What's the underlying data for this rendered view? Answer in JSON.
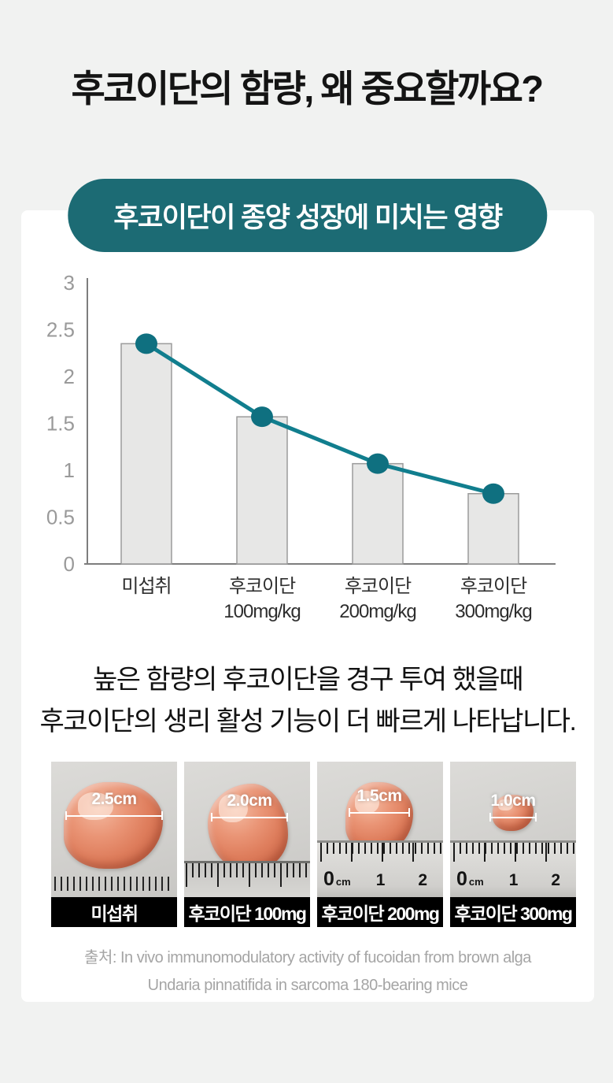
{
  "page": {
    "background_color": "#f1f2f1",
    "card_color": "#ffffff"
  },
  "header": {
    "title": "후코이단의 함량, 왜 중요할까요?",
    "badge": "후코이단이 종양 성장에 미치는 영향",
    "badge_color": "#1c6b74"
  },
  "chart_data": {
    "type": "bar",
    "title": "후코이단이 종양 성장에 미치는 영향",
    "categories": [
      [
        "미섭취"
      ],
      [
        "후코이단",
        "100mg/kg"
      ],
      [
        "후코이단",
        "200mg/kg"
      ],
      [
        "후코이단",
        "300mg/kg"
      ]
    ],
    "values": [
      2.35,
      1.57,
      1.07,
      0.75
    ],
    "overlay_line": true,
    "xlabel": "",
    "ylabel": "",
    "ylim": [
      0,
      3
    ],
    "yticks": [
      0,
      0.5,
      1,
      1.5,
      2,
      2.5,
      3
    ],
    "grid": false,
    "legend": null,
    "bar_fill": "#e7e7e6",
    "bar_border": "#9b9b9b",
    "line_color": "#117e8e",
    "marker_color": "#0f7080"
  },
  "description": {
    "line1": "높은 함량의 후코이단을 경구 투여 했을때",
    "line2": "후코이단의 생리 활성 기능이 더 빠르게 나타납니다."
  },
  "specimens": {
    "items": [
      {
        "size": "2.5cm",
        "label": "미섭취"
      },
      {
        "size": "2.0cm",
        "label": "후코이단 100mg"
      },
      {
        "size": "1.5cm",
        "label": "후코이단 200mg"
      },
      {
        "size": "1.0cm",
        "label": "후코이단 300mg"
      }
    ],
    "ruler_zero": "0",
    "ruler_unit": "cm",
    "ruler_one": "1",
    "ruler_two": "2"
  },
  "source": {
    "line1": "출처: In vivo immunomodulatory activity of fucoidan from brown alga",
    "line2": "Undaria pinnatifida in sarcoma 180-bearing mice"
  }
}
